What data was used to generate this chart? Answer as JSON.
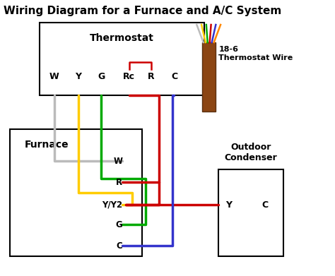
{
  "title": "Wiring Diagram for a Furnace and A/C System",
  "bg_color": "#ffffff",
  "title_fontsize": 11,
  "thermostat_label": "Thermostat",
  "furnace_label": "Furnace",
  "condenser_label": "Outdoor\nCondenser",
  "wire_bundle_label": "18-6\nThermostat Wire",
  "thermostat_terminals": [
    "W",
    "Y",
    "G",
    "Rc",
    "R",
    "C"
  ],
  "furnace_terminals": [
    "W",
    "R",
    "Y/Y2",
    "G",
    "C"
  ],
  "condenser_terminals": [
    "Y",
    "C"
  ],
  "wire_colors": {
    "W": "#bbbbbb",
    "Y": "#ffcc00",
    "G": "#00aa00",
    "R": "#cc0000",
    "C": "#3333cc"
  },
  "rc_bracket_color": "#cc0000",
  "cable_color": "#8B4513",
  "cable_fan_colors": [
    "#bbbbbb",
    "#ffcc00",
    "#00aa00",
    "#cc0000",
    "#3333cc",
    "#ff8800"
  ]
}
